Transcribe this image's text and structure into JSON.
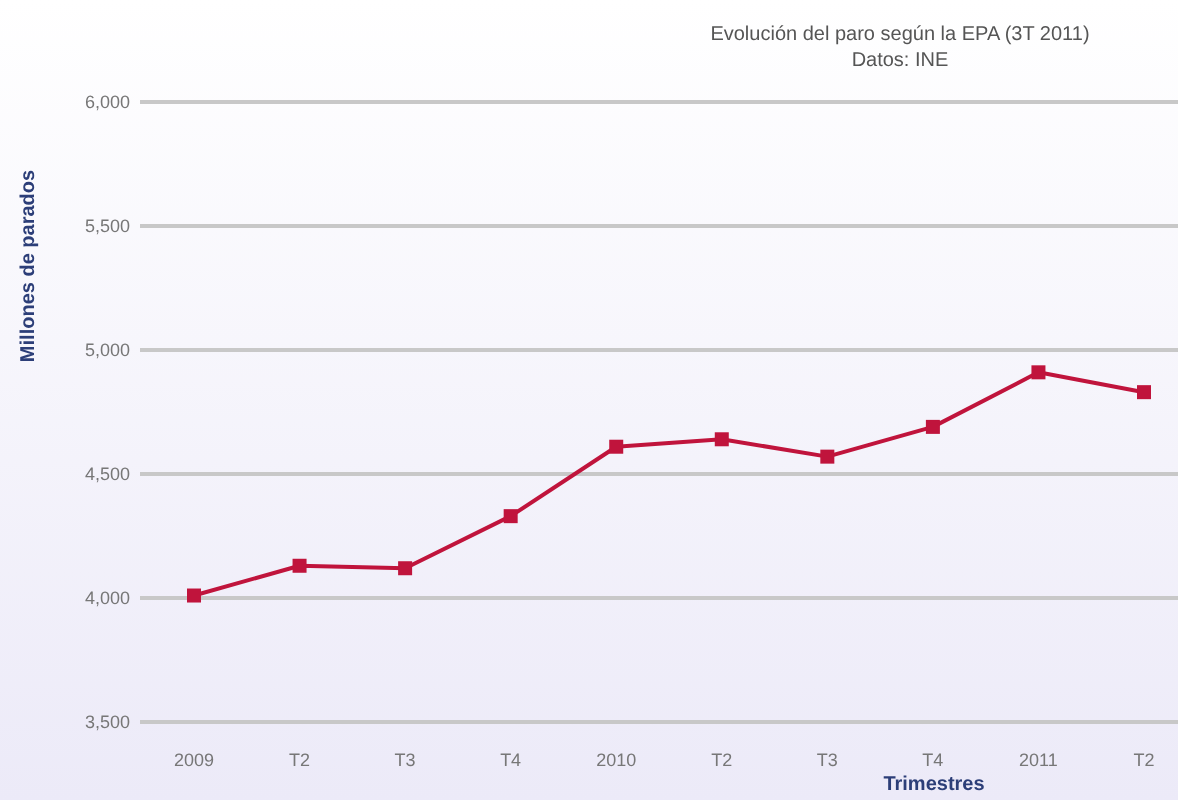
{
  "chart_data": {
    "type": "line",
    "title": "Evolución del paro según la EPA (3T 2011)",
    "subtitle": "Datos: INE",
    "xlabel": "Trimestres",
    "ylabel": "Millones de parados",
    "categories": [
      "2009",
      "T2",
      "T3",
      "T4",
      "2010",
      "T2",
      "T3",
      "T4",
      "2011",
      "T2"
    ],
    "series": [
      {
        "color": "#c0143c",
        "values": [
          4010,
          4130,
          4120,
          4330,
          4610,
          4640,
          4570,
          4690,
          4910,
          4830
        ]
      }
    ],
    "ylim": [
      3500,
      6000
    ],
    "yticks": [
      {
        "value": 3500,
        "label": "3,500"
      },
      {
        "value": 4000,
        "label": "4,000"
      },
      {
        "value": 4500,
        "label": "4,500"
      },
      {
        "value": 5000,
        "label": "5,000"
      },
      {
        "value": 5500,
        "label": "5,500"
      },
      {
        "value": 6000,
        "label": "6,000"
      }
    ],
    "grid": "y",
    "marker": "square",
    "line_style": "solid"
  }
}
